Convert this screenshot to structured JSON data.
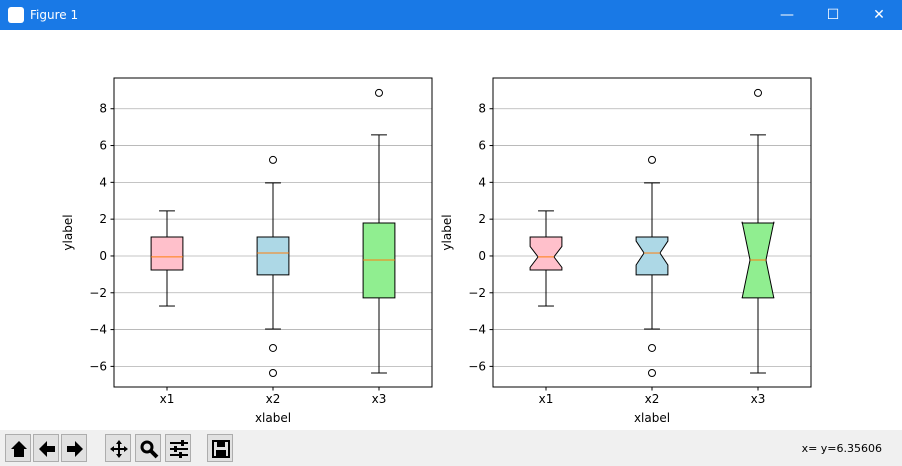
{
  "window": {
    "title": "Figure 1",
    "status": "x= y=6.35606"
  },
  "chart_data": [
    {
      "type": "box",
      "notch": false,
      "xlabel": "xlabel",
      "ylabel": "ylabel",
      "grid": "y",
      "categories": [
        "x1",
        "x2",
        "x3"
      ],
      "ylim": [
        -7.12,
        9.67
      ],
      "yticks": [
        {
          "value": -6,
          "label": "−6"
        },
        {
          "value": -4,
          "label": "−4"
        },
        {
          "value": -2,
          "label": "−2"
        },
        0,
        2,
        4,
        6,
        8
      ],
      "median_color": "#ff7f0e",
      "boxes": [
        {
          "color": "pink",
          "whislo": -2.72,
          "q1": -0.76,
          "med": -0.05,
          "q3": 1.03,
          "whishi": 2.45,
          "fliers": []
        },
        {
          "color": "lightblue",
          "whislo": -3.97,
          "q1": -1.03,
          "med": 0.16,
          "q3": 1.03,
          "whishi": 3.97,
          "fliers": [
            5.22,
            -5.0,
            -6.36
          ]
        },
        {
          "color": "lightgreen",
          "whislo": -6.36,
          "q1": -2.28,
          "med": -0.22,
          "q3": 1.79,
          "whishi": 6.58,
          "fliers": [
            8.86
          ]
        }
      ]
    },
    {
      "type": "box",
      "notch": true,
      "xlabel": "xlabel",
      "ylabel": "ylabel",
      "grid": "y",
      "categories": [
        "x1",
        "x2",
        "x3"
      ],
      "ylim": [
        -7.12,
        9.67
      ],
      "yticks": [
        {
          "value": -6,
          "label": "−6"
        },
        {
          "value": -4,
          "label": "−4"
        },
        {
          "value": -2,
          "label": "−2"
        },
        0,
        2,
        4,
        6,
        8
      ],
      "median_color": "#ff7f0e",
      "boxes": [
        {
          "color": "pink",
          "whislo": -2.72,
          "q1": -0.76,
          "med": -0.05,
          "q3": 1.03,
          "whishi": 2.45,
          "notch_low": -0.62,
          "notch_high": 0.52,
          "fliers": []
        },
        {
          "color": "lightblue",
          "whislo": -3.97,
          "q1": -1.03,
          "med": 0.16,
          "q3": 1.03,
          "whishi": 3.97,
          "notch_low": -0.49,
          "notch_high": 0.81,
          "fliers": [
            5.22,
            -5.0,
            -6.36
          ]
        },
        {
          "color": "lightgreen",
          "whislo": -6.36,
          "q1": -2.28,
          "med": -0.22,
          "q3": 1.79,
          "whishi": 6.58,
          "notch_low": -2.3,
          "notch_high": 1.86,
          "fliers": [
            8.86
          ]
        }
      ]
    }
  ]
}
